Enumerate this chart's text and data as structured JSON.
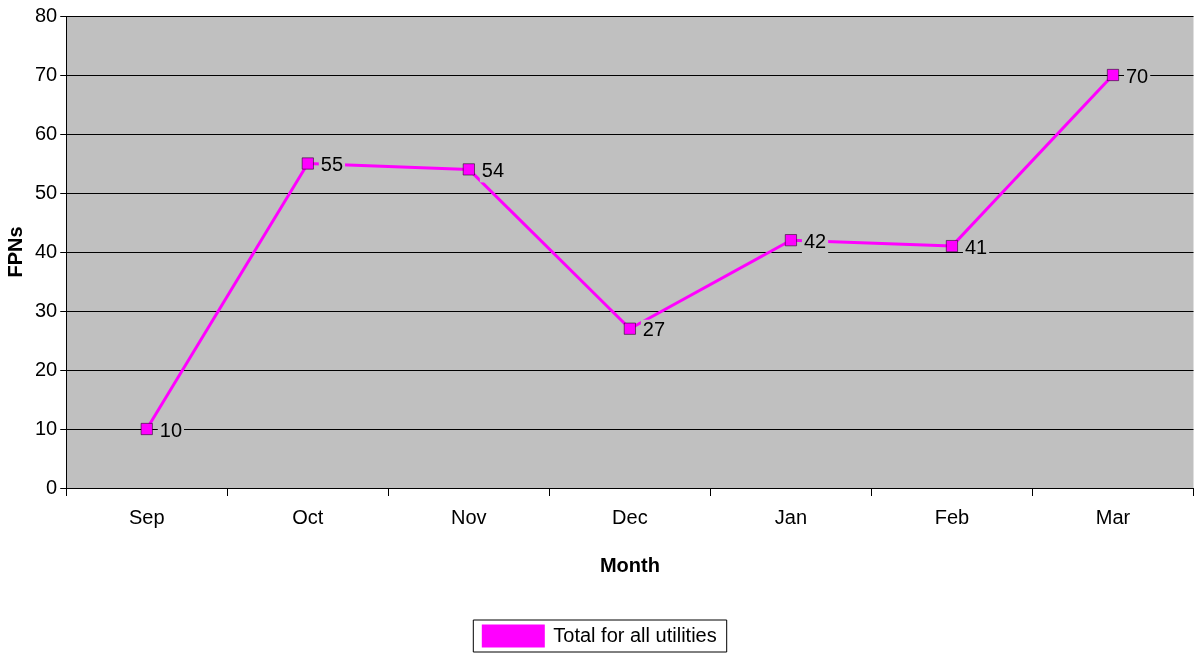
{
  "chart_data": {
    "type": "line",
    "xlabel": "Month",
    "ylabel": "FPNs",
    "categories": [
      "Sep",
      "Oct",
      "Nov",
      "Dec",
      "Jan",
      "Feb",
      "Mar"
    ],
    "series": [
      {
        "name": "Total for all utilities",
        "color": "#ff00ff",
        "values": [
          10,
          55,
          54,
          27,
          42,
          41,
          70
        ]
      }
    ],
    "ylim": [
      0,
      80
    ],
    "yticks": [
      0,
      10,
      20,
      30,
      40,
      50,
      60,
      70,
      80
    ],
    "grid": "y",
    "legend": "bottom",
    "marker": "square",
    "line_style": "solid",
    "data_labels": true
  }
}
